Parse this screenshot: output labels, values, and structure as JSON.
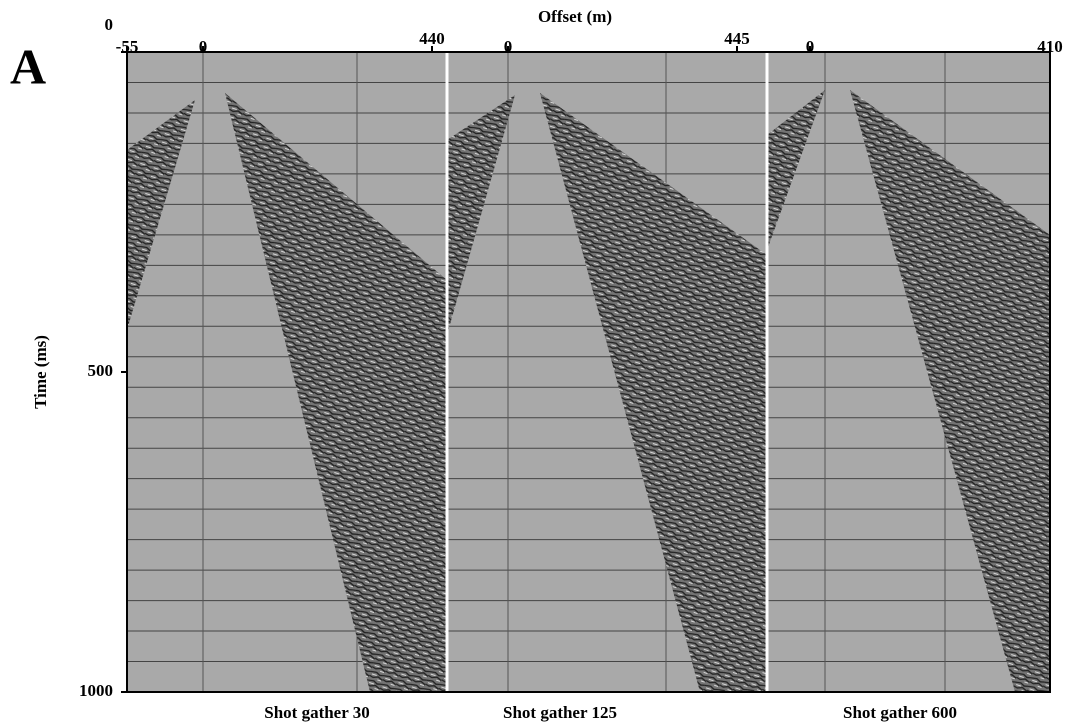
{
  "panel_label": "A",
  "chart_data": {
    "type": "seismic",
    "xlabel": "Offset (m)",
    "ylabel": "Time (ms)",
    "ylim": [
      0,
      1000
    ],
    "yticks": [
      0,
      500,
      1000
    ],
    "panels": [
      {
        "caption": "Shot gather 30",
        "offset_ticks": [
          -55,
          0,
          440
        ]
      },
      {
        "caption": "Shot gather 125",
        "offset_ticks": [
          0,
          445
        ]
      },
      {
        "caption": "Shot gather 600",
        "offset_ticks": [
          0,
          410
        ]
      }
    ]
  }
}
